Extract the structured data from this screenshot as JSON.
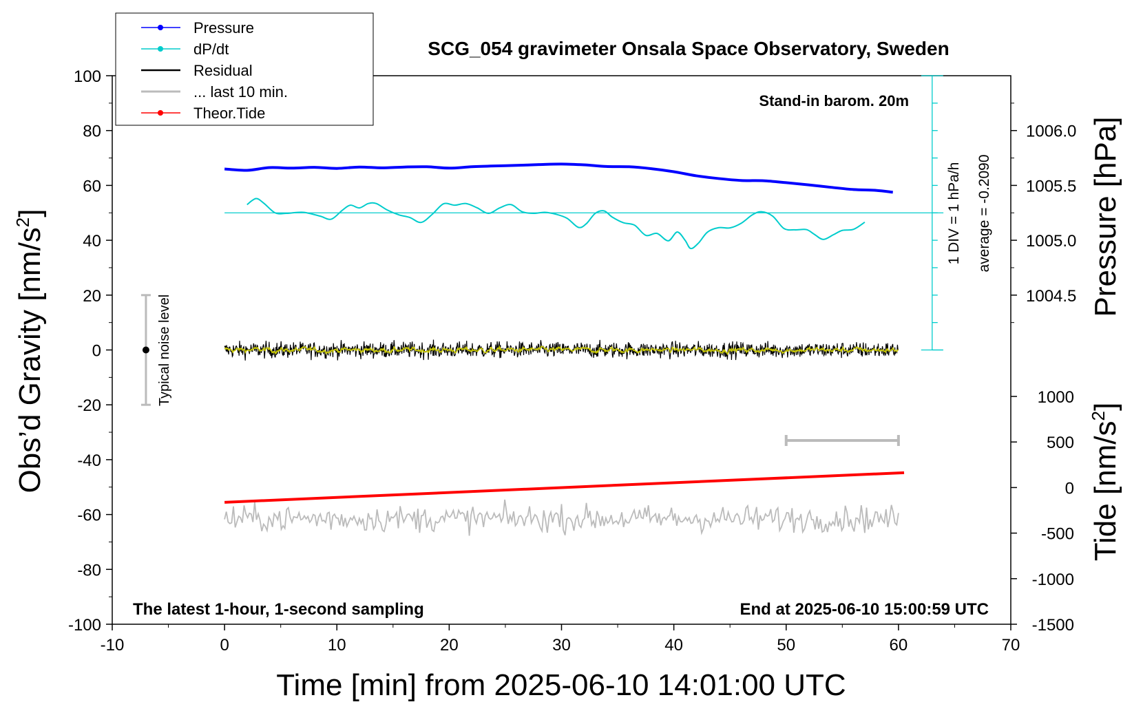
{
  "chart_data": {
    "type": "line",
    "title": "SCG_054 gravimeter Onsala Space Observatory, Sweden",
    "xlabel": "Time [min] from 2025-06-10 14:01:00 UTC",
    "ylabel_left": "Obs’d Gravity [nm/s²]",
    "ylabel_left_main": "Obs’d Gravity [nm/s",
    "ylabel_left_sup": "2",
    "ylabel_left_end": "]",
    "ylabel_right_top": "Pressure [hPa]",
    "ylabel_right_bottom": "Tide [nm/s²]",
    "ylabel_right_bottom_main": "Tide [nm/s",
    "ylabel_right_bottom_sup": "2",
    "ylabel_right_bottom_end": "]",
    "xlim": [
      -10,
      70
    ],
    "ylim_left": [
      -100,
      100
    ],
    "pressure_ticks": [
      "1006.0",
      "1005.5",
      "1005.0",
      "1004.5"
    ],
    "pressure_tick_values": [
      1006.0,
      1005.5,
      1005.0,
      1004.5
    ],
    "tide_ticks": [
      "1000",
      "500",
      "0",
      "-500",
      "-1000",
      "-1500"
    ],
    "tide_tick_values": [
      1000,
      500,
      0,
      -500,
      -1000,
      -1500
    ],
    "x_ticks": [
      "-10",
      "0",
      "10",
      "20",
      "30",
      "40",
      "50",
      "60",
      "70"
    ],
    "x_tick_values": [
      -10,
      0,
      10,
      20,
      30,
      40,
      50,
      60,
      70
    ],
    "y_ticks": [
      "100",
      "80",
      "60",
      "40",
      "20",
      "0",
      "-20",
      "-40",
      "-60",
      "-80",
      "-100"
    ],
    "y_tick_values": [
      100,
      80,
      60,
      40,
      20,
      0,
      -20,
      -40,
      -60,
      -80,
      -100
    ],
    "legend_placement": "top-left",
    "legend": [
      {
        "label": "Pressure",
        "color": "#0000ff",
        "marker": true
      },
      {
        "label": "dP/dt",
        "color": "#00cccc",
        "marker": true
      },
      {
        "label": "Residual",
        "color": "#000000",
        "marker": false
      },
      {
        "label": "... last 10 min.",
        "color": "#bbbbbb",
        "marker": false
      },
      {
        "label": "Theor.Tide",
        "color": "#ff0000",
        "marker": true
      }
    ],
    "annotations": {
      "stand_in": "Stand-in barom. 20m",
      "div_label": "1 DIV = 1 hPa/h",
      "average_label": "average = -0.2090",
      "noise_label": "Typical noise level",
      "bottom_left": "The latest 1-hour, 1-second sampling",
      "bottom_right": "End at 2025-06-10 15:00:59 UTC"
    },
    "noise_bar": {
      "x": -7,
      "y": 0,
      "low": -20,
      "high": 20
    },
    "ten_min_bar": {
      "x_start": 50,
      "x_end": 60,
      "y": -33
    },
    "series": [
      {
        "name": "Pressure",
        "color": "#0000ff",
        "unit": "gravity-axis",
        "x": [
          0,
          2,
          4,
          6,
          8,
          10,
          12,
          14,
          16,
          18,
          20,
          22,
          24,
          26,
          28,
          30,
          32,
          34,
          36,
          38,
          40,
          42,
          44,
          46,
          48,
          50,
          52,
          54,
          56,
          58,
          59.5
        ],
        "y": [
          66,
          65.5,
          66.5,
          66.3,
          66.6,
          66.2,
          66.7,
          66.4,
          66.7,
          66.8,
          66.3,
          66.8,
          67.1,
          67.3,
          67.6,
          67.8,
          67.5,
          66.9,
          66.8,
          66.1,
          65,
          63.5,
          62.5,
          61.8,
          61.7,
          61,
          60.2,
          59.3,
          58.5,
          58.2,
          57.5
        ]
      },
      {
        "name": "dP/dt",
        "color": "#00cccc",
        "unit": "gravity-axis",
        "x": [
          2,
          2.8,
          3.5,
          4.5,
          5.5,
          7,
          8.5,
          9.5,
          10.5,
          11.2,
          12,
          12.8,
          13.5,
          14.5,
          15.5,
          16.5,
          17.5,
          18.5,
          19.5,
          20.5,
          21.5,
          22.5,
          23.5,
          24.5,
          25.5,
          26.5,
          27.5,
          28.5,
          29.5,
          30.5,
          31.5,
          32.2,
          33,
          33.8,
          34.5,
          35.5,
          36.5,
          37.5,
          38.5,
          39.5,
          40.3,
          41,
          41.5,
          42.2,
          43,
          44,
          45,
          46,
          47,
          47.8,
          48.8,
          49.8,
          50.8,
          51.8,
          52.5,
          53.3,
          54.2,
          55,
          56,
          57
        ],
        "y": [
          53,
          55.2,
          53.5,
          50,
          49.8,
          50.2,
          48.8,
          47.7,
          51,
          52.8,
          51.8,
          53.4,
          53.4,
          51,
          49.3,
          48.3,
          46.5,
          49.5,
          53.3,
          52.8,
          53.4,
          51.8,
          49.8,
          51.8,
          53,
          50.4,
          49.8,
          50.2,
          49.5,
          48,
          44.7,
          46,
          49.8,
          50.7,
          48.5,
          46.4,
          45.5,
          41.8,
          42.5,
          39.8,
          43,
          40,
          37,
          39,
          43,
          44.6,
          44.5,
          46.2,
          49.3,
          50.4,
          48.8,
          44.3,
          43.8,
          43.9,
          42.2,
          40.3,
          42,
          43.6,
          44,
          46.6
        ]
      },
      {
        "name": "Residual",
        "color": "#000000",
        "unit": "gravity-axis",
        "amplitude": 3,
        "x_range": [
          0,
          60
        ]
      },
      {
        "name": "... last 10 min.",
        "color": "#bbbbbb",
        "unit": "gravity-axis",
        "baseline": -61.5,
        "amplitude": 4,
        "x_range": [
          0,
          60
        ]
      },
      {
        "name": "Theor.Tide",
        "color": "#ff0000",
        "unit": "tide-axis",
        "x": [
          0,
          60.5
        ],
        "y": [
          -162,
          163
        ]
      }
    ],
    "dpdt_reference": {
      "x_start": 0,
      "x_end": 64,
      "y": 50
    },
    "dpdt_scale_axis": {
      "x": 63,
      "y_top": 100,
      "y_bottom": 0
    }
  }
}
